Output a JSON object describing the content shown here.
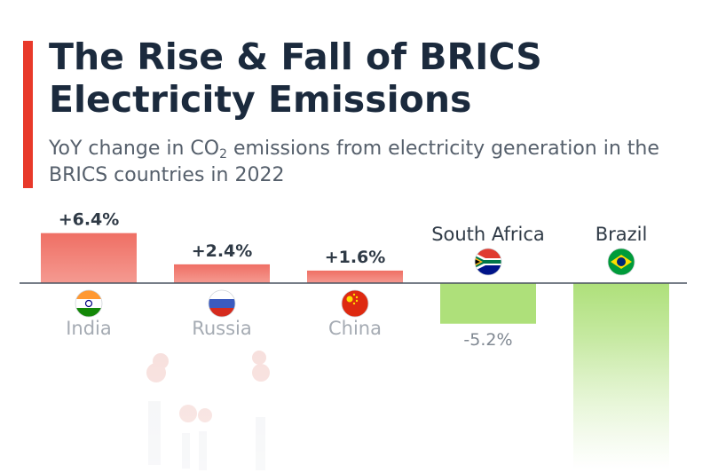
{
  "title": "The Rise & Fall of BRICS Electricity Emissions",
  "subtitle": {
    "prefix": "YoY change in CO",
    "subscript": "2",
    "suffix": " emissions from electricity generation in the BRICS countries in 2022"
  },
  "colors": {
    "accent": "#e8392a",
    "positive": "#ef6f64",
    "negative": "#aee07a",
    "baseline": "#4a5360",
    "dark_text": "#2f3a46",
    "muted_text": "#a5abb3",
    "neg_value_text": "#7f8791"
  },
  "icons": {
    "India": "india-flag-icon",
    "Russia": "russia-flag-icon",
    "China": "china-flag-icon",
    "South Africa": "south-africa-flag-icon",
    "Brazil": "brazil-flag-icon",
    "decoration": "smokestack-icon"
  },
  "chart_data": {
    "type": "bar",
    "categories": [
      "India",
      "Russia",
      "China",
      "South Africa",
      "Brazil"
    ],
    "values": [
      6.4,
      2.4,
      1.6,
      -5.2,
      -23.8
    ],
    "value_labels": [
      "+6.4%",
      "+2.4%",
      "+1.6%",
      "-5.2%",
      null
    ],
    "ylabel": "",
    "grid": false,
    "legend": "none"
  }
}
